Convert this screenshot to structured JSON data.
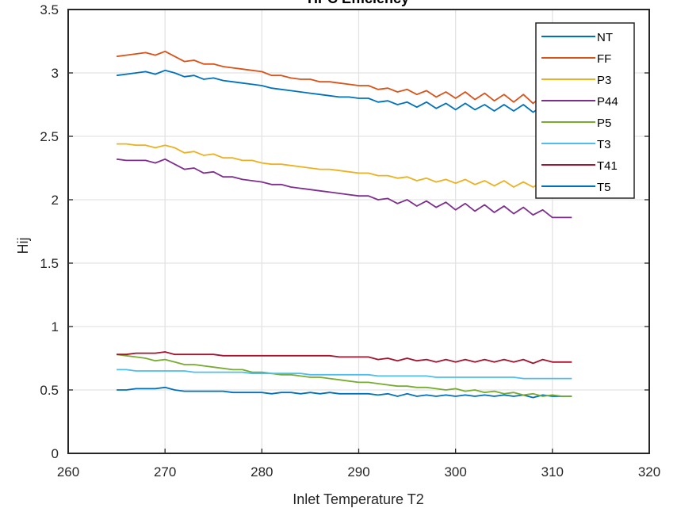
{
  "chart_data": {
    "type": "line",
    "title": "HPC Efficiency",
    "xlabel": "Inlet Temperature T2",
    "ylabel": "Hij",
    "xlim": [
      260,
      320
    ],
    "ylim": [
      0,
      3.5
    ],
    "xticks": [
      "260",
      "270",
      "280",
      "290",
      "300",
      "310",
      "320"
    ],
    "yticks": [
      "0",
      "0.5",
      "1",
      "1.5",
      "2",
      "2.5",
      "3",
      "3.5"
    ],
    "grid": true,
    "legend_position": "top-right",
    "x": [
      265,
      266,
      267,
      268,
      269,
      270,
      271,
      272,
      273,
      274,
      275,
      276,
      277,
      278,
      279,
      280,
      281,
      282,
      283,
      284,
      285,
      286,
      287,
      288,
      289,
      290,
      291,
      292,
      293,
      294,
      295,
      296,
      297,
      298,
      299,
      300,
      301,
      302,
      303,
      304,
      305,
      306,
      307,
      308,
      309,
      310,
      311,
      312
    ],
    "series": [
      {
        "name": "NT",
        "color": "#0072BD",
        "values": [
          0.5,
          0.5,
          0.51,
          0.51,
          0.51,
          0.52,
          0.5,
          0.49,
          0.49,
          0.49,
          0.49,
          0.49,
          0.48,
          0.48,
          0.48,
          0.48,
          0.47,
          0.48,
          0.48,
          0.47,
          0.48,
          0.47,
          0.48,
          0.47,
          0.47,
          0.47,
          0.47,
          0.46,
          0.47,
          0.45,
          0.47,
          0.45,
          0.46,
          0.45,
          0.46,
          0.45,
          0.46,
          0.45,
          0.46,
          0.45,
          0.46,
          0.45,
          0.46,
          0.44,
          0.46,
          0.45,
          0.45,
          0.45
        ]
      },
      {
        "name": "FF",
        "color": "#D95319",
        "values": [
          3.13,
          3.14,
          3.15,
          3.16,
          3.14,
          3.17,
          3.13,
          3.09,
          3.1,
          3.07,
          3.07,
          3.05,
          3.04,
          3.03,
          3.02,
          3.01,
          2.98,
          2.98,
          2.96,
          2.95,
          2.95,
          2.93,
          2.93,
          2.92,
          2.91,
          2.9,
          2.9,
          2.87,
          2.88,
          2.85,
          2.87,
          2.83,
          2.86,
          2.81,
          2.85,
          2.8,
          2.85,
          2.79,
          2.84,
          2.78,
          2.83,
          2.77,
          2.83,
          2.76,
          2.82,
          2.77,
          2.82,
          2.78
        ]
      },
      {
        "name": "P3",
        "color": "#EDB120",
        "values": [
          2.44,
          2.44,
          2.43,
          2.43,
          2.41,
          2.43,
          2.41,
          2.37,
          2.38,
          2.35,
          2.36,
          2.33,
          2.33,
          2.31,
          2.31,
          2.29,
          2.28,
          2.28,
          2.27,
          2.26,
          2.25,
          2.24,
          2.24,
          2.23,
          2.22,
          2.21,
          2.21,
          2.19,
          2.19,
          2.17,
          2.18,
          2.15,
          2.17,
          2.14,
          2.16,
          2.13,
          2.16,
          2.12,
          2.15,
          2.11,
          2.15,
          2.1,
          2.14,
          2.1,
          2.14,
          2.1,
          2.13,
          2.1
        ]
      },
      {
        "name": "P44",
        "color": "#7E2F8E",
        "values": [
          2.32,
          2.31,
          2.31,
          2.31,
          2.29,
          2.32,
          2.28,
          2.24,
          2.25,
          2.21,
          2.22,
          2.18,
          2.18,
          2.16,
          2.15,
          2.14,
          2.12,
          2.12,
          2.1,
          2.09,
          2.08,
          2.07,
          2.06,
          2.05,
          2.04,
          2.03,
          2.03,
          2.0,
          2.01,
          1.97,
          2.0,
          1.95,
          1.99,
          1.94,
          1.98,
          1.92,
          1.97,
          1.91,
          1.96,
          1.9,
          1.95,
          1.89,
          1.94,
          1.88,
          1.92,
          1.86,
          1.86,
          1.86
        ]
      },
      {
        "name": "P5",
        "color": "#77AC30",
        "values": [
          0.78,
          0.77,
          0.76,
          0.75,
          0.73,
          0.74,
          0.72,
          0.7,
          0.7,
          0.69,
          0.68,
          0.67,
          0.66,
          0.66,
          0.64,
          0.64,
          0.63,
          0.62,
          0.62,
          0.61,
          0.6,
          0.6,
          0.59,
          0.58,
          0.57,
          0.56,
          0.56,
          0.55,
          0.54,
          0.53,
          0.53,
          0.52,
          0.52,
          0.51,
          0.5,
          0.51,
          0.49,
          0.5,
          0.48,
          0.49,
          0.47,
          0.48,
          0.46,
          0.47,
          0.45,
          0.46,
          0.45,
          0.45
        ]
      },
      {
        "name": "T3",
        "color": "#4DBEEE",
        "values": [
          0.66,
          0.66,
          0.65,
          0.65,
          0.65,
          0.65,
          0.65,
          0.65,
          0.64,
          0.64,
          0.64,
          0.64,
          0.64,
          0.64,
          0.63,
          0.63,
          0.63,
          0.63,
          0.63,
          0.63,
          0.62,
          0.62,
          0.62,
          0.62,
          0.62,
          0.62,
          0.62,
          0.61,
          0.61,
          0.61,
          0.61,
          0.61,
          0.61,
          0.6,
          0.6,
          0.6,
          0.6,
          0.6,
          0.6,
          0.6,
          0.6,
          0.6,
          0.59,
          0.59,
          0.59,
          0.59,
          0.59,
          0.59
        ]
      },
      {
        "name": "T41",
        "color": "#A2142F",
        "values": [
          0.78,
          0.78,
          0.79,
          0.79,
          0.79,
          0.8,
          0.78,
          0.78,
          0.78,
          0.78,
          0.78,
          0.77,
          0.77,
          0.77,
          0.77,
          0.77,
          0.77,
          0.77,
          0.77,
          0.77,
          0.77,
          0.77,
          0.77,
          0.76,
          0.76,
          0.76,
          0.76,
          0.74,
          0.75,
          0.73,
          0.75,
          0.73,
          0.74,
          0.72,
          0.74,
          0.72,
          0.74,
          0.72,
          0.74,
          0.72,
          0.74,
          0.72,
          0.74,
          0.71,
          0.74,
          0.72,
          0.72,
          0.72
        ]
      },
      {
        "name": "T5",
        "color": "#0072BD",
        "values": [
          2.98,
          2.99,
          3.0,
          3.01,
          2.99,
          3.02,
          3.0,
          2.97,
          2.98,
          2.95,
          2.96,
          2.94,
          2.93,
          2.92,
          2.91,
          2.9,
          2.88,
          2.87,
          2.86,
          2.85,
          2.84,
          2.83,
          2.82,
          2.81,
          2.81,
          2.8,
          2.8,
          2.77,
          2.78,
          2.75,
          2.77,
          2.73,
          2.77,
          2.72,
          2.76,
          2.71,
          2.76,
          2.71,
          2.75,
          2.7,
          2.75,
          2.7,
          2.75,
          2.69,
          2.74,
          2.7,
          2.74,
          2.7
        ]
      }
    ]
  }
}
